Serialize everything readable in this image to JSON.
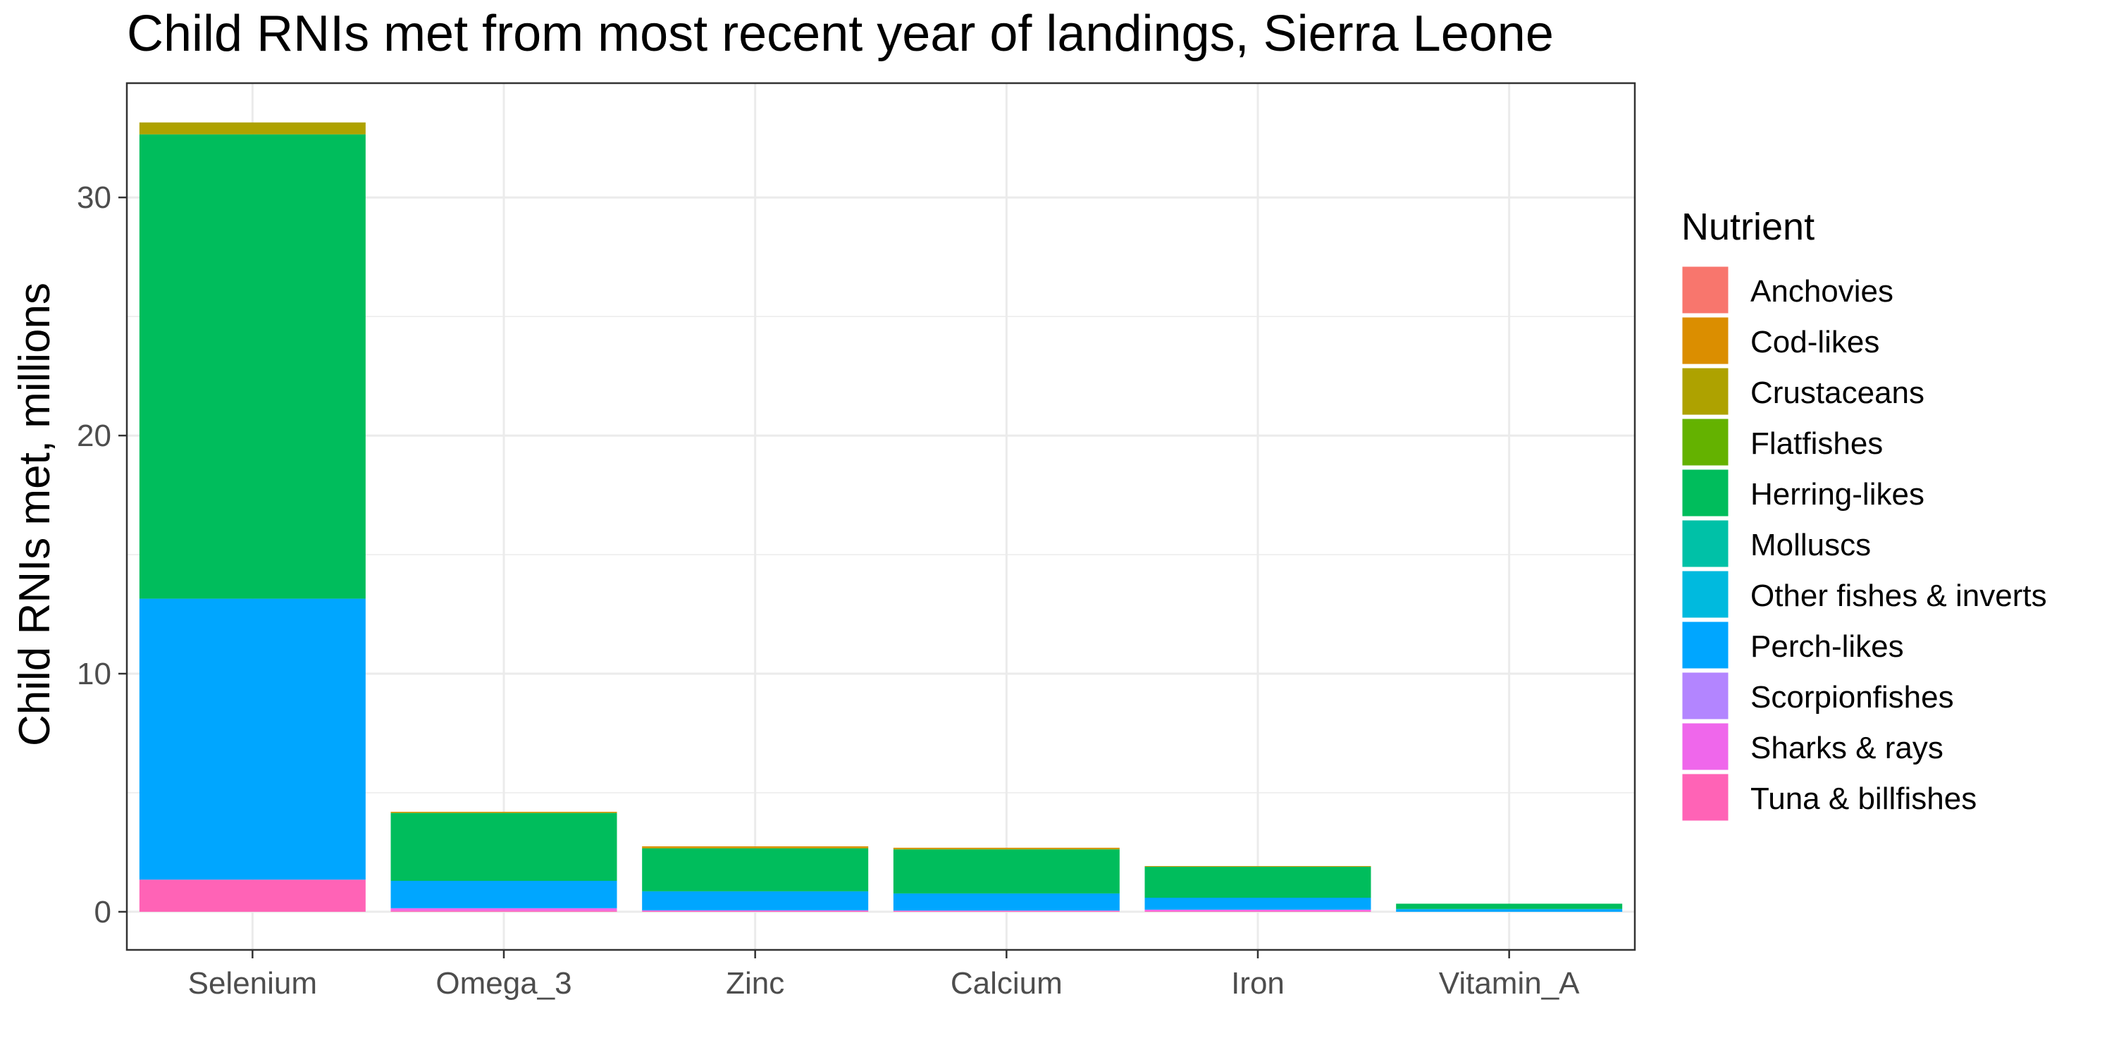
{
  "chart_data": {
    "type": "bar",
    "stacked": true,
    "title": "Child RNIs met from most recent year of landings, Sierra Leone",
    "xlabel": "",
    "ylabel": "Child RNIs met, millions",
    "ylim": [
      -1.6,
      34.8
    ],
    "yticks": [
      0,
      10,
      20,
      30
    ],
    "grid": true,
    "legend_title": "Nutrient",
    "legend_position": "right",
    "categories": [
      "Selenium",
      "Omega_3",
      "Zinc",
      "Calcium",
      "Iron",
      "Vitamin_A"
    ],
    "series": [
      {
        "name": "Anchovies",
        "color": "#F8766D",
        "values": [
          0,
          0,
          0,
          0,
          0,
          0
        ]
      },
      {
        "name": "Cod-likes",
        "color": "#DB8E00",
        "values": [
          0,
          0.03,
          0.05,
          0.04,
          0.01,
          0
        ]
      },
      {
        "name": "Crustaceans",
        "color": "#AEA200",
        "values": [
          0.5,
          0.02,
          0.04,
          0.03,
          0.02,
          0
        ]
      },
      {
        "name": "Flatfishes",
        "color": "#64B200",
        "values": [
          0,
          0,
          0,
          0,
          0,
          0
        ]
      },
      {
        "name": "Herring-likes",
        "color": "#00BD5C",
        "values": [
          19.5,
          2.85,
          1.8,
          1.85,
          1.3,
          0.22
        ]
      },
      {
        "name": "Molluscs",
        "color": "#00C1A7",
        "values": [
          0,
          0,
          0,
          0,
          0,
          0
        ]
      },
      {
        "name": "Other fishes & inverts",
        "color": "#00BADE",
        "values": [
          0,
          0,
          0,
          0,
          0,
          0.02
        ]
      },
      {
        "name": "Perch-likes",
        "color": "#00A6FF",
        "values": [
          11.8,
          1.15,
          0.8,
          0.72,
          0.5,
          0.1
        ]
      },
      {
        "name": "Scorpionfishes",
        "color": "#B385FF",
        "values": [
          0,
          0,
          0,
          0,
          0,
          0
        ]
      },
      {
        "name": "Sharks & rays",
        "color": "#EF67EB",
        "values": [
          0,
          0.1,
          0.03,
          0.02,
          0.06,
          0
        ]
      },
      {
        "name": "Tuna & billfishes",
        "color": "#FF63B6",
        "values": [
          1.35,
          0.05,
          0.03,
          0.03,
          0.03,
          0
        ]
      }
    ]
  }
}
